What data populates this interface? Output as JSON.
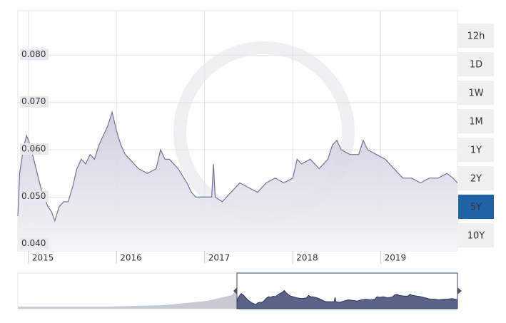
{
  "chart_data": {
    "type": "area",
    "x": [
      2014.88,
      2014.9,
      2014.95,
      2014.98,
      2015.02,
      2015.06,
      2015.1,
      2015.14,
      2015.18,
      2015.22,
      2015.26,
      2015.3,
      2015.35,
      2015.4,
      2015.45,
      2015.5,
      2015.55,
      2015.6,
      2015.65,
      2015.7,
      2015.75,
      2015.8,
      2015.85,
      2015.9,
      2015.95,
      2016.0,
      2016.05,
      2016.1,
      2016.15,
      2016.25,
      2016.35,
      2016.45,
      2016.5,
      2016.55,
      2016.6,
      2016.7,
      2016.8,
      2016.85,
      2016.9,
      2017.0,
      2017.08,
      2017.1,
      2017.12,
      2017.2,
      2017.3,
      2017.4,
      2017.5,
      2017.6,
      2017.7,
      2017.8,
      2017.9,
      2018.0,
      2018.05,
      2018.1,
      2018.2,
      2018.3,
      2018.4,
      2018.45,
      2018.5,
      2018.55,
      2018.65,
      2018.75,
      2018.8,
      2018.85,
      2018.95,
      2019.05,
      2019.15,
      2019.25,
      2019.35,
      2019.45,
      2019.55,
      2019.65,
      2019.75,
      2019.82,
      2019.87
    ],
    "values": [
      0.046,
      0.055,
      0.061,
      0.063,
      0.061,
      0.058,
      0.055,
      0.052,
      0.05,
      0.048,
      0.047,
      0.045,
      0.048,
      0.049,
      0.049,
      0.052,
      0.056,
      0.058,
      0.057,
      0.059,
      0.058,
      0.061,
      0.063,
      0.065,
      0.068,
      0.064,
      0.061,
      0.059,
      0.058,
      0.056,
      0.055,
      0.056,
      0.06,
      0.058,
      0.058,
      0.056,
      0.053,
      0.051,
      0.05,
      0.05,
      0.05,
      0.057,
      0.05,
      0.049,
      0.051,
      0.053,
      0.052,
      0.051,
      0.053,
      0.054,
      0.053,
      0.054,
      0.058,
      0.057,
      0.058,
      0.056,
      0.058,
      0.061,
      0.062,
      0.06,
      0.059,
      0.059,
      0.062,
      0.06,
      0.059,
      0.058,
      0.056,
      0.054,
      0.054,
      0.053,
      0.054,
      0.054,
      0.055,
      0.054,
      0.053
    ],
    "color": "#6e7499",
    "xlim": [
      2014.88,
      2019.87
    ],
    "xticks": [
      2015,
      2016,
      2017,
      2018,
      2019
    ],
    "ylim": [
      0.0386,
      0.0894
    ],
    "yticks": [
      {
        "value": 0.04,
        "label": "0.040"
      },
      {
        "value": 0.05,
        "label": "0.050"
      },
      {
        "value": 0.06,
        "label": "0.060"
      },
      {
        "value": 0.07,
        "label": "0.070"
      },
      {
        "value": 0.08,
        "label": "0.080"
      }
    ],
    "grid": true
  },
  "range_buttons": [
    "12h",
    "1D",
    "1W",
    "1M",
    "1Y",
    "2Y",
    "5Y",
    "10Y"
  ],
  "selected_range": "5Y"
}
